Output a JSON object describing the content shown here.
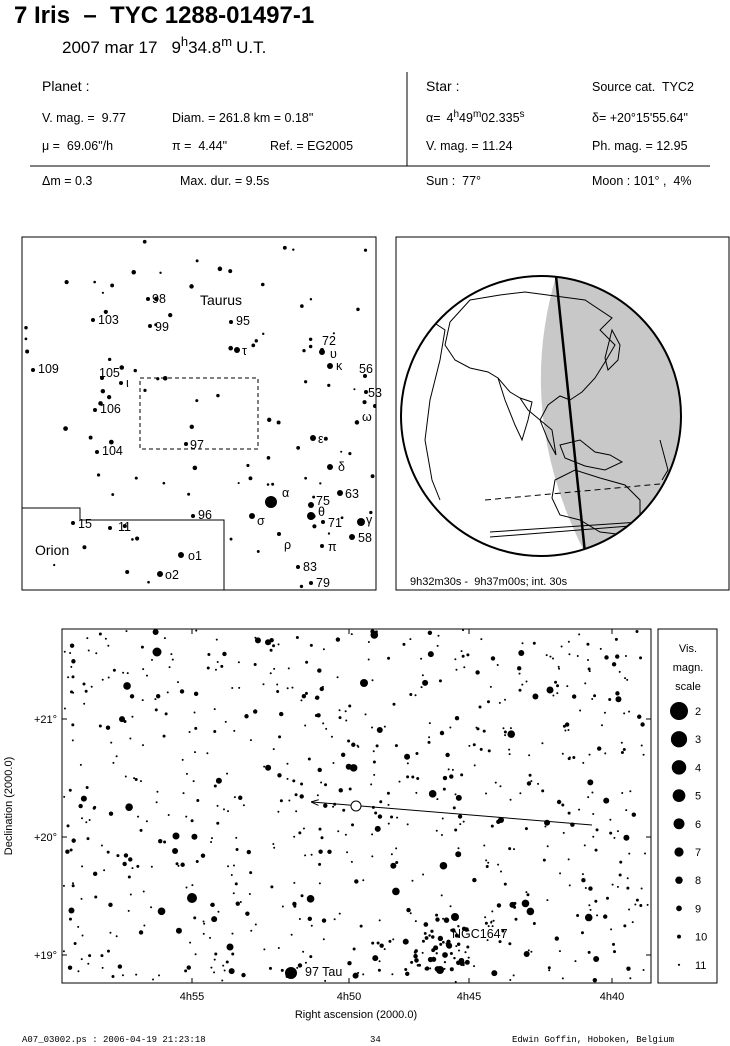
{
  "header": {
    "title": "7 Iris  –  TYC 1288-01497-1",
    "date": "2007 mar 17",
    "time_h": "9",
    "h": "h",
    "time_m": "34.8",
    "m": "m",
    "time_suffix": "U.T."
  },
  "planet": {
    "heading": "Planet :",
    "vmag": "V. mag. =  9.77",
    "diam": "Diam. = 261.8 km = 0.18\"",
    "motion": "μ =  69.06\"/h",
    "parallax": "π =  4.44\"",
    "ref": "Ref. = EG2005",
    "delta_mag": "Δm = 0.3",
    "max_dur": "Max. dur. = 9.5s"
  },
  "star": {
    "heading": "Star :",
    "source": "Source cat.  TYC2",
    "ra_label": "α=",
    "ra_h": "4",
    "h": "h",
    "ra_m": "49",
    "m": "m",
    "ra_s": "02.335",
    "s": "s",
    "dec": "δ= +20°15'55.64\"",
    "vmag": "V. mag. = 11.24",
    "phmag": "Ph. mag. = 12.95",
    "sun": "Sun :  77°",
    "moon": "Moon : 101° ,  4%"
  },
  "finder": {
    "constellations": [
      "Taurus",
      "Orion"
    ],
    "star_labels": [
      "98",
      "99",
      "103",
      "95",
      "72",
      "τ",
      "υ",
      "κ",
      "56",
      "53",
      "ω",
      "109",
      "105",
      "ι",
      "106",
      "104",
      "97",
      "ε",
      "δ",
      "α",
      "63",
      "75",
      "θ",
      "71",
      "γ",
      "58",
      "σ",
      "ρ",
      "π",
      "83",
      "79",
      "96",
      "15",
      "11",
      "ο1",
      "ο2"
    ]
  },
  "globe": {
    "caption": "9h32m30s -  9h37m00s; int. 30s"
  },
  "chart": {
    "yticks": [
      "+21°",
      "+20°",
      "+19°"
    ],
    "xticks": [
      "4h55",
      "4h50",
      "4h45",
      "4h40"
    ],
    "xlabel": "Right ascension (2000.0)",
    "ylabel": "Declination (2000.0)",
    "annotations": [
      "NGC1647",
      "97 Tau"
    ]
  },
  "scale": {
    "title": [
      "Vis.",
      "magn.",
      "scale"
    ],
    "magnitudes": [
      2,
      3,
      4,
      5,
      6,
      7,
      8,
      9,
      10,
      11
    ]
  },
  "footer": {
    "file": "A07_03002.ps : 2006-04-19 21:23:18",
    "page": "34",
    "author": "Edwin Goffin, Hoboken, Belgium"
  }
}
